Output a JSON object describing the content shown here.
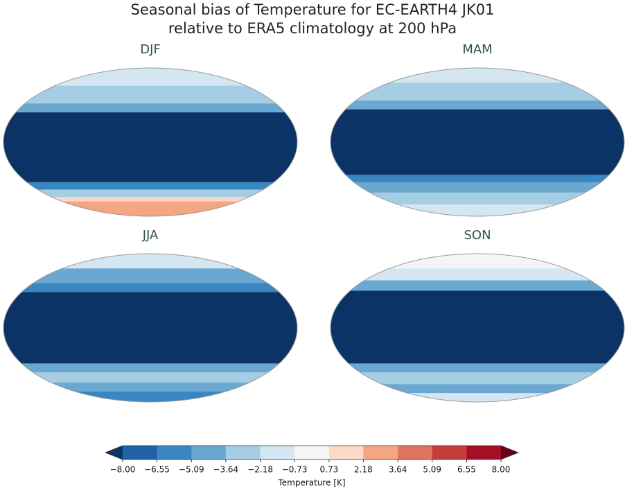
{
  "title_lines": [
    "Seasonal bias of Temperature for EC-EARTH4 JK01",
    "relative to ERA5 climatology at 200 hPa"
  ],
  "panels": [
    "DJF",
    "MAM",
    "JJA",
    "SON"
  ],
  "colorbar": {
    "label": "Temperature [K]",
    "ticks": [
      {
        "value": -8,
        "label": "−8.00"
      },
      {
        "value": -6.55,
        "label": "−6.55"
      },
      {
        "value": -5.09,
        "label": "−5.09"
      },
      {
        "value": -3.64,
        "label": "−3.64"
      },
      {
        "value": -2.18,
        "label": "−2.18"
      },
      {
        "value": -0.73,
        "label": "−0.73"
      },
      {
        "value": 0.73,
        "label": "0.73"
      },
      {
        "value": 2.18,
        "label": "2.18"
      },
      {
        "value": 3.64,
        "label": "3.64"
      },
      {
        "value": 5.09,
        "label": "5.09"
      },
      {
        "value": 6.55,
        "label": "6.55"
      },
      {
        "value": 8,
        "label": "8.00"
      }
    ],
    "colors": [
      "#2062a8",
      "#3a86c0",
      "#6aa8d2",
      "#a5cde3",
      "#d4e6f1",
      "#f5f5f5",
      "#fbd9c8",
      "#f4a582",
      "#e0735f",
      "#c43c3c",
      "#a50f26"
    ],
    "under_color": "#0b3366",
    "over_color": "#67001f"
  }
}
